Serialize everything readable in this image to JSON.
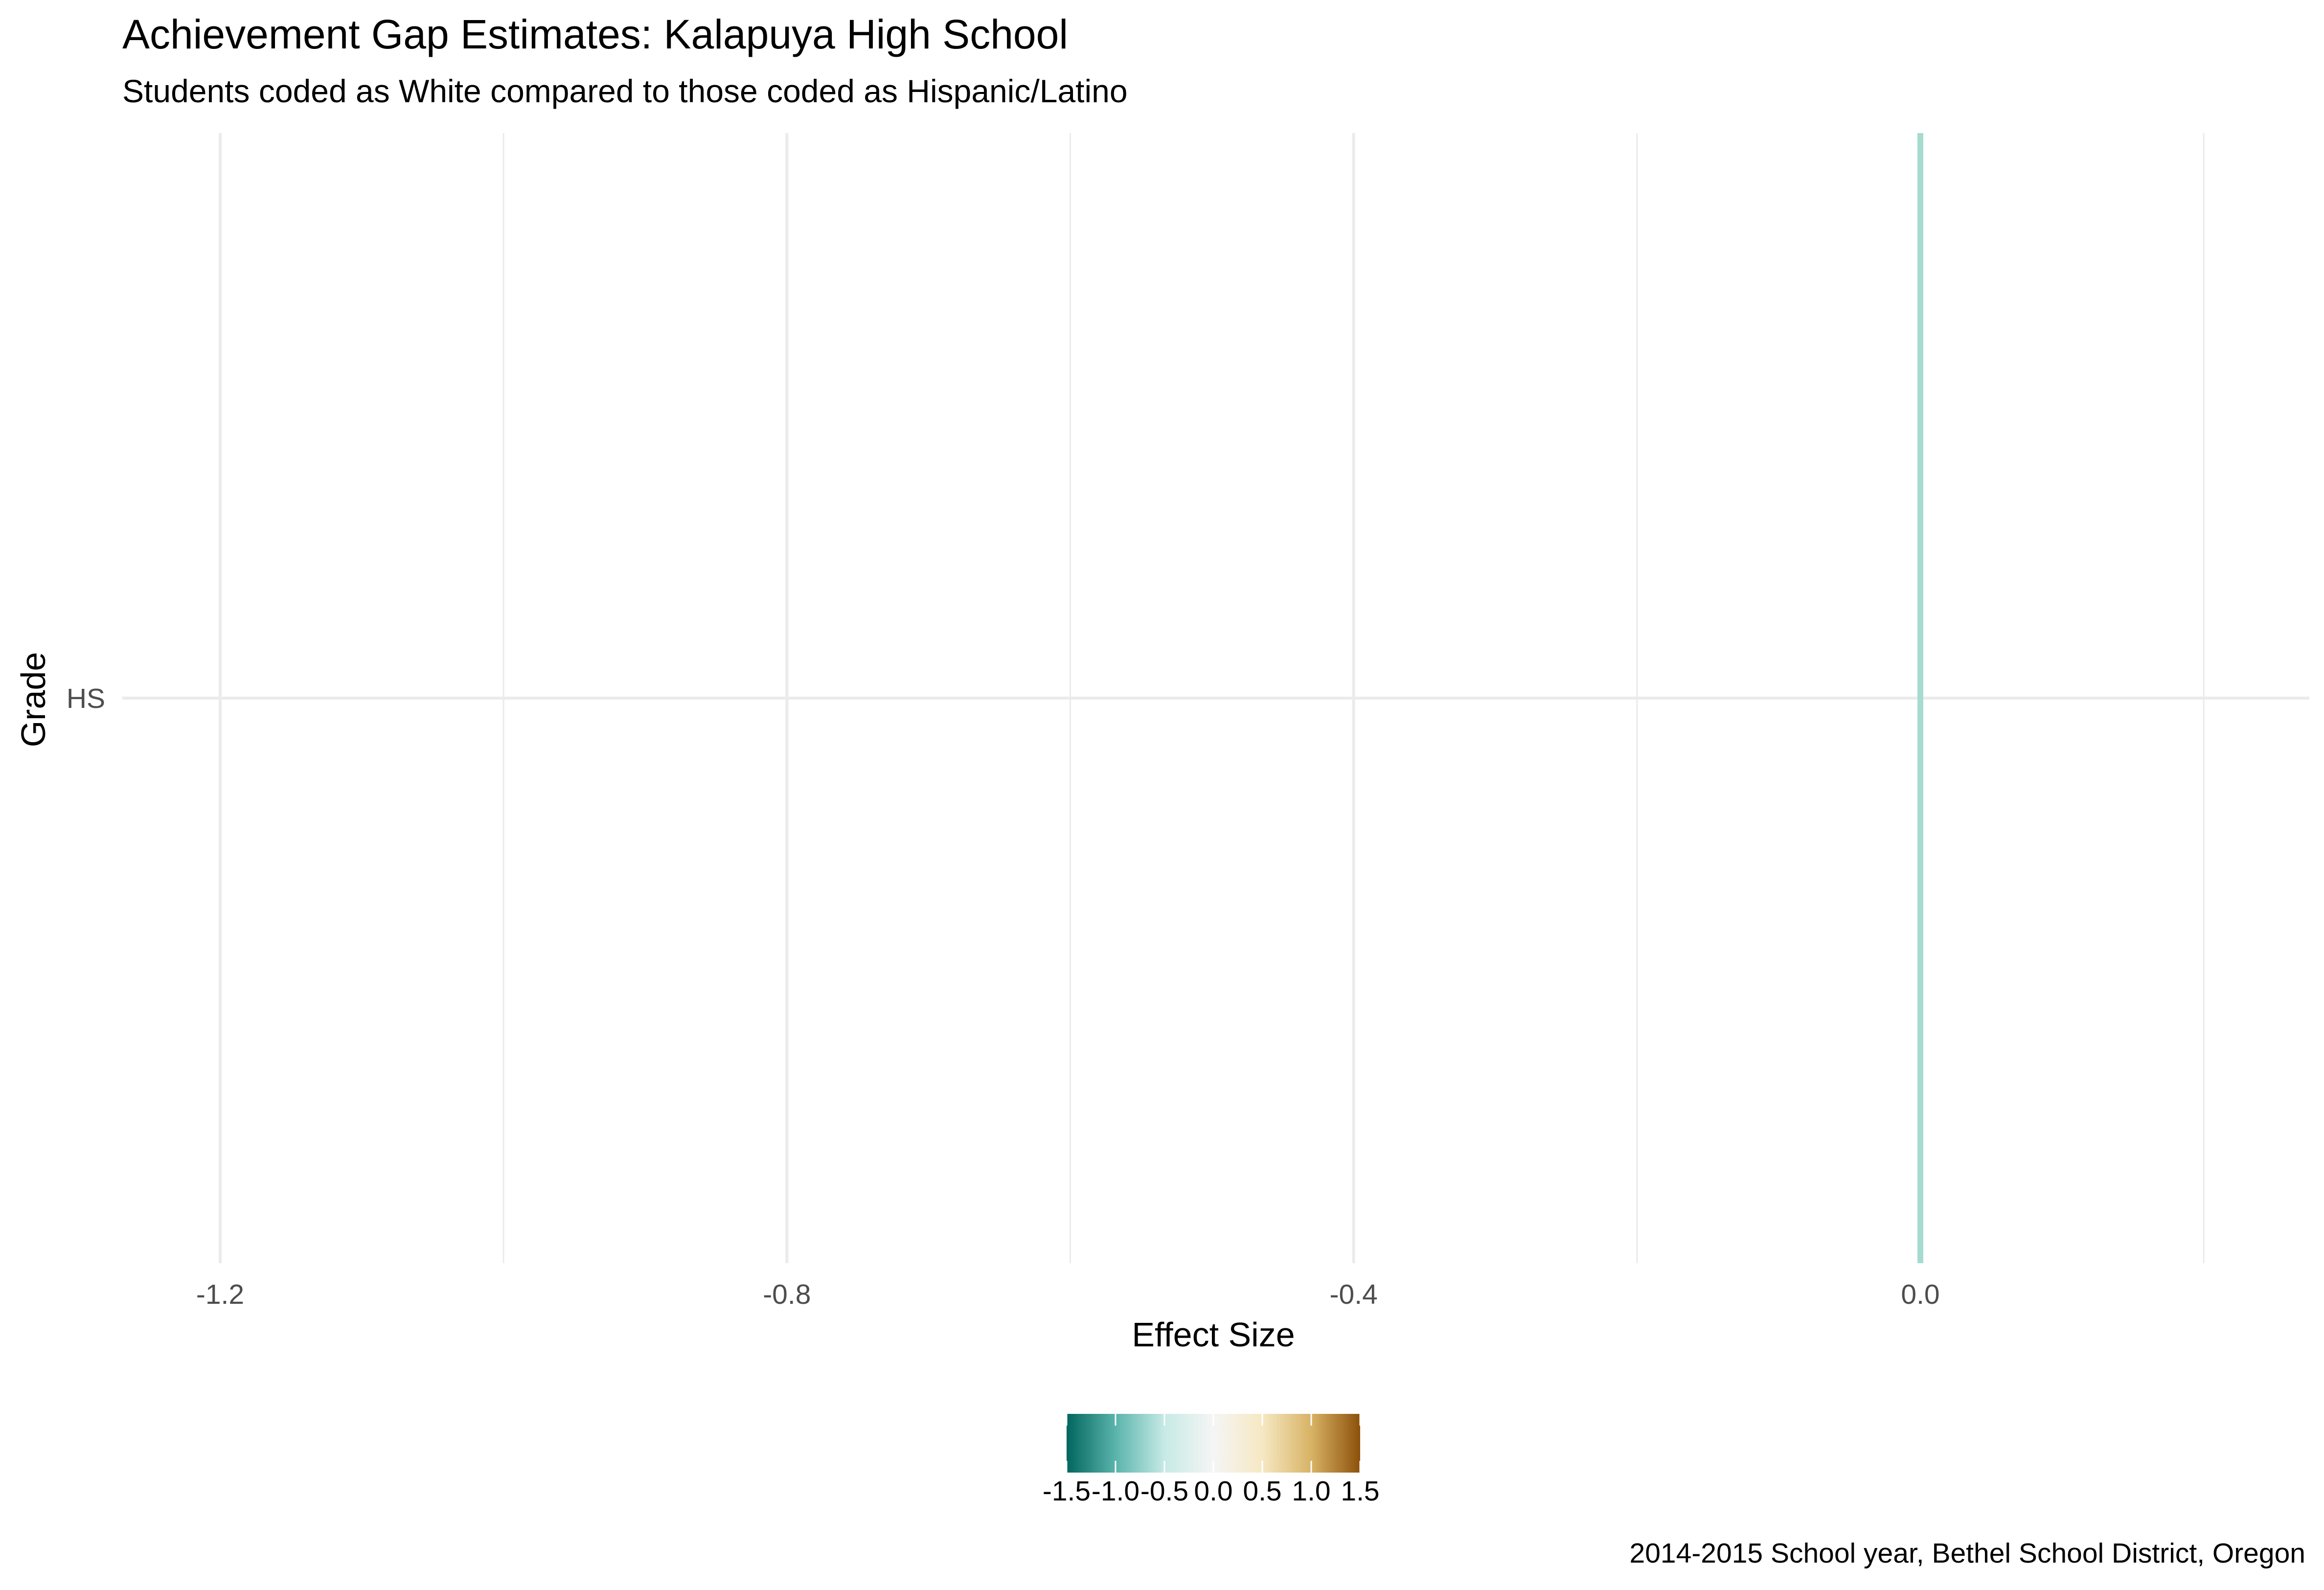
{
  "chart_data": {
    "type": "bar",
    "title": "Achievement Gap Estimates: Kalapuya High School",
    "subtitle": "Students coded as White compared to those coded as Hispanic/Latino",
    "caption": "2014-2015 School year, Bethel School District, Oregon",
    "xlabel": "Effect Size",
    "ylabel": "Grade",
    "orientation": "horizontal",
    "categories": [
      "HS"
    ],
    "values": [
      0.0
    ],
    "xlim": [
      -1.35,
      0.27
    ],
    "x_ticks": [
      -1.2,
      -0.8,
      -0.4,
      0.0
    ],
    "x_tick_labels": [
      "-1.2",
      "-0.8",
      "-0.4",
      "0.0"
    ],
    "x_minor_ticks": [
      -1.0,
      -0.6,
      -0.2,
      0.2
    ],
    "grid": true,
    "legend": {
      "position": "bottom",
      "type": "colorbar",
      "palette": "BrBG",
      "limits": [
        -1.5,
        1.5
      ],
      "breaks": [
        -1.5,
        -1.0,
        -0.5,
        0.0,
        0.5,
        1.0,
        1.5
      ],
      "labels": [
        "-1.5",
        "-1.0",
        "-0.5",
        "0.0",
        "0.5",
        "1.0",
        "1.5"
      ],
      "colors": [
        "#01665e",
        "#5ab4ac",
        "#c7eae5",
        "#f5f5f5",
        "#f6e8c3",
        "#d8b365",
        "#8c510a"
      ]
    },
    "bar_color": "#a6dbcf",
    "grid_color": "#ebebeb"
  }
}
